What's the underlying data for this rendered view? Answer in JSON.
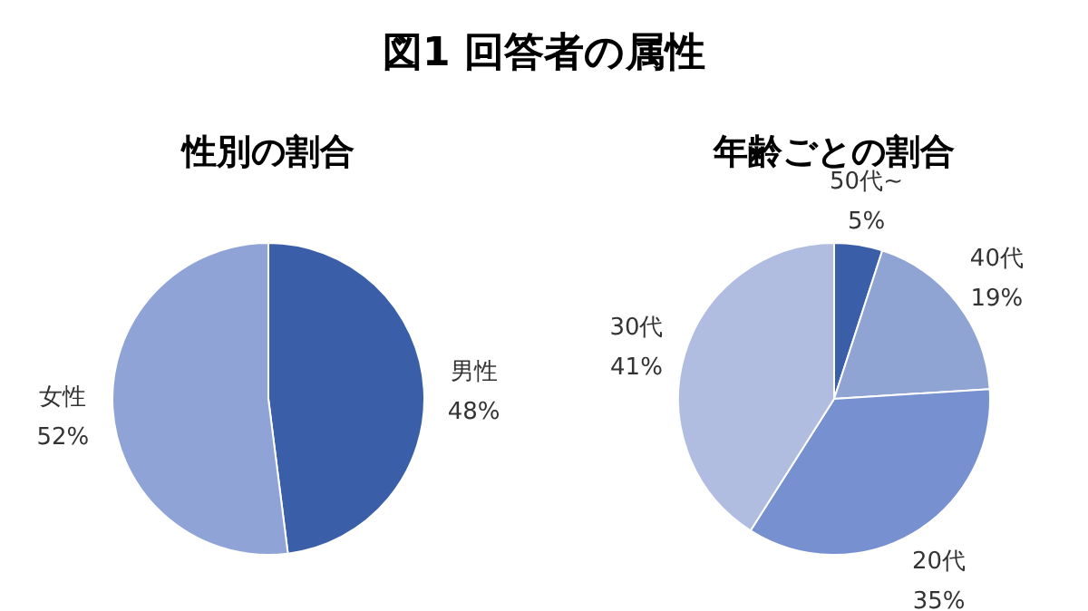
{
  "chart_data": [
    {
      "type": "pie",
      "title": "図1 回答者の属性",
      "subtitle": "性別の割合",
      "categories": [
        "男性",
        "女性"
      ],
      "values": [
        48,
        52
      ],
      "colors": [
        "#3a5fa8",
        "#8fa3d6"
      ],
      "value_labels": [
        "48%",
        "52%"
      ]
    },
    {
      "type": "pie",
      "title": "年齢ごとの割合",
      "categories": [
        "50代~",
        "40代",
        "20代",
        "30代"
      ],
      "values": [
        5,
        19,
        35,
        41
      ],
      "colors": [
        "#3a5fa8",
        "#90a4d4",
        "#7790d0",
        "#b0bde0"
      ],
      "value_labels": [
        "5%",
        "19%",
        "35%",
        "41%"
      ]
    }
  ]
}
